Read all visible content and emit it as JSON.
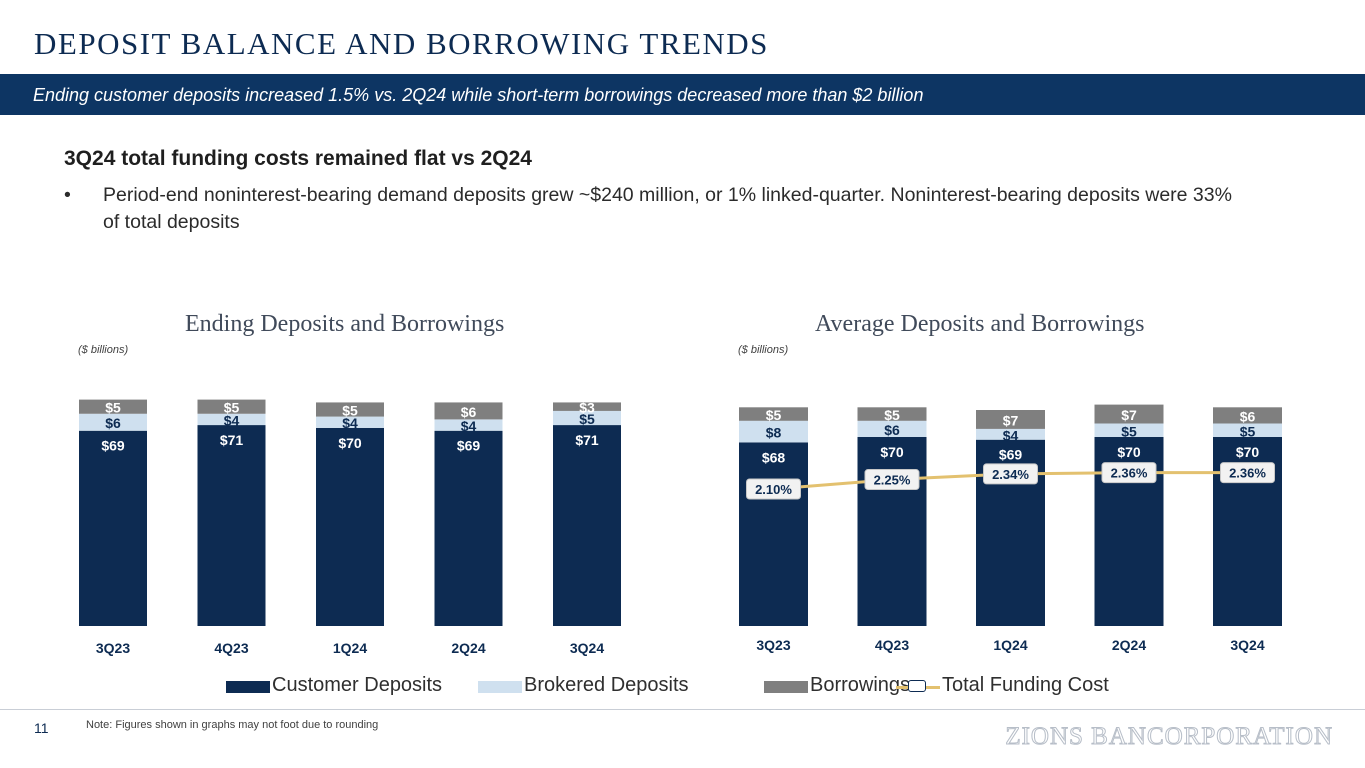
{
  "header": {
    "title": "DEPOSIT BALANCE AND BORROWING TRENDS",
    "banner": "Ending customer deposits increased 1.5% vs. 2Q24 while short-term borrowings decreased more than $2 billion"
  },
  "body": {
    "headline": "3Q24 total funding costs remained flat vs 2Q24",
    "bullet_marker": "•",
    "bullet": "Period-end noninterest-bearing demand deposits grew ~$240 million, or 1% linked-quarter. Noninterest-bearing deposits were 33% of total deposits"
  },
  "chart_data": [
    {
      "type": "bar",
      "stacked": true,
      "title": "Ending Deposits and Borrowings",
      "units_label": "($ billions)",
      "categories": [
        "3Q23",
        "4Q23",
        "1Q24",
        "2Q24",
        "3Q24"
      ],
      "series": [
        {
          "name": "Customer Deposits",
          "values": [
            69,
            71,
            70,
            69,
            71
          ],
          "labels": [
            "$69",
            "$71",
            "$70",
            "$69",
            "$71"
          ]
        },
        {
          "name": "Brokered Deposits",
          "values": [
            6,
            4,
            4,
            4,
            5
          ],
          "labels": [
            "$6",
            "$4",
            "$4",
            "$4",
            "$5"
          ]
        },
        {
          "name": "Borrowings",
          "values": [
            5,
            5,
            5,
            6,
            3
          ],
          "labels": [
            "$5",
            "$5",
            "$5",
            "$6",
            "$3"
          ]
        }
      ]
    },
    {
      "type": "bar",
      "stacked": true,
      "title": "Average Deposits and Borrowings",
      "units_label": "($ billions)",
      "categories": [
        "3Q23",
        "4Q23",
        "1Q24",
        "2Q24",
        "3Q24"
      ],
      "series": [
        {
          "name": "Customer Deposits",
          "values": [
            68,
            70,
            69,
            70,
            70
          ],
          "labels": [
            "$68",
            "$70",
            "$69",
            "$70",
            "$70"
          ]
        },
        {
          "name": "Brokered Deposits",
          "values": [
            8,
            6,
            4,
            5,
            5
          ],
          "labels": [
            "$8",
            "$6",
            "$4",
            "$5",
            "$5"
          ]
        },
        {
          "name": "Borrowings",
          "values": [
            5,
            5,
            7,
            7,
            6
          ],
          "labels": [
            "$5",
            "$5",
            "$7",
            "$7",
            "$6"
          ]
        }
      ],
      "line_series": {
        "name": "Total Funding Cost",
        "values": [
          2.1,
          2.25,
          2.34,
          2.36,
          2.36
        ],
        "labels": [
          "2.10%",
          "2.25%",
          "2.34%",
          "2.36%",
          "2.36%"
        ]
      }
    }
  ],
  "legend": {
    "items": [
      {
        "label": "Customer Deposits",
        "color": "#0d2b52"
      },
      {
        "label": "Brokered Deposits",
        "color": "#cfe0ef"
      },
      {
        "label": "Borrowings",
        "color": "#7f7f7f"
      },
      {
        "label": "Total Funding Cost",
        "color": "#e3c16f"
      }
    ]
  },
  "colors": {
    "customer": "#0d2b52",
    "brokered": "#cfe0ef",
    "borrowings": "#7f7f7f",
    "funding_line": "#e3c16f",
    "banner": "#0d3563"
  },
  "footer": {
    "page_number": "11",
    "note": "Note: Figures shown in graphs may not foot due to rounding",
    "logo": "ZIONS BANCORPORATION"
  }
}
